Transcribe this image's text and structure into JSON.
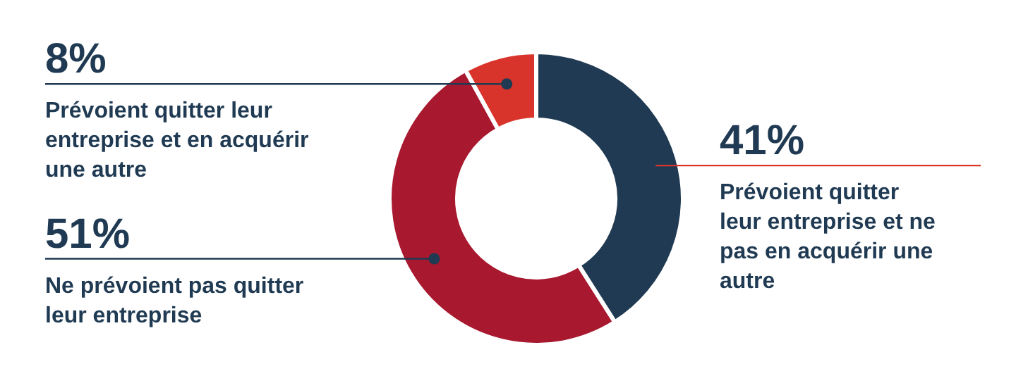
{
  "chart_data": {
    "type": "donut",
    "categories": [
      "Prévoient quitter leur entreprise et ne pas en acquérir une autre",
      "Ne prévoient pas quitter leur entreprise",
      "Prévoient quitter leur entreprise et en acquérir une autre"
    ],
    "values": [
      41,
      51,
      8
    ],
    "colors": [
      "#1f3a52",
      "#a8182e",
      "#d9342b"
    ],
    "value_labels": [
      "41%",
      "51%",
      "8%"
    ]
  }
}
